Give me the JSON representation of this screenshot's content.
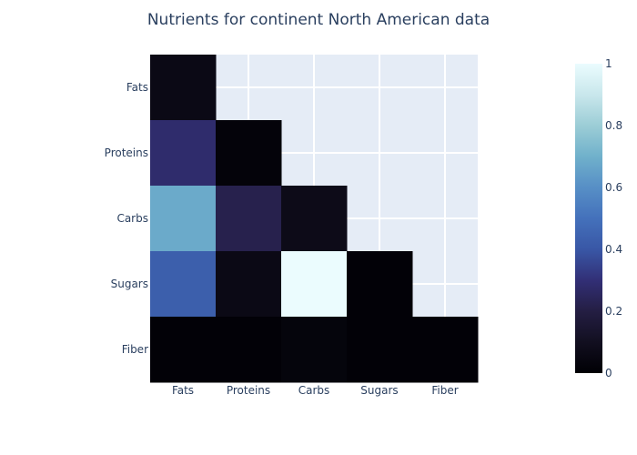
{
  "chart_data": {
    "type": "heatmap",
    "title": "Nutrients for continent North American data",
    "xlabel": "",
    "ylabel": "",
    "x_categories": [
      "Fats",
      "Proteins",
      "Carbs",
      "Sugars",
      "Fiber"
    ],
    "y_categories": [
      "Fats",
      "Proteins",
      "Carbs",
      "Sugars",
      "Fiber"
    ],
    "z": [
      [
        0.06,
        null,
        null,
        null,
        null
      ],
      [
        0.28,
        0.02,
        null,
        null,
        null
      ],
      [
        0.68,
        0.22,
        0.07,
        null,
        null
      ],
      [
        0.43,
        0.06,
        1.0,
        0.01,
        null
      ],
      [
        0.01,
        0.01,
        0.03,
        0.01,
        0.01
      ]
    ],
    "zrange": [
      0,
      1
    ],
    "colorbar": {
      "ticks": [
        0,
        0.2,
        0.4,
        0.6,
        0.8,
        1
      ],
      "tick_labels": [
        "0",
        "0.2",
        "0.4",
        "0.6",
        "0.8",
        "1"
      ],
      "colorscale": [
        [
          0.0,
          "#000004"
        ],
        [
          0.1,
          "#120f20"
        ],
        [
          0.2,
          "#241e43"
        ],
        [
          0.3,
          "#322f76"
        ],
        [
          0.4,
          "#3957a6"
        ],
        [
          0.5,
          "#4471bb"
        ],
        [
          0.6,
          "#578fc6"
        ],
        [
          0.7,
          "#70b1cb"
        ],
        [
          0.8,
          "#9ccdd6"
        ],
        [
          0.9,
          "#c9e7ec"
        ],
        [
          1.0,
          "#ebfcfe"
        ]
      ]
    },
    "grid": true,
    "plot_background": "#e5ecf6",
    "title_color": "#2a3f5f",
    "tick_color": "#2a3f5f"
  }
}
